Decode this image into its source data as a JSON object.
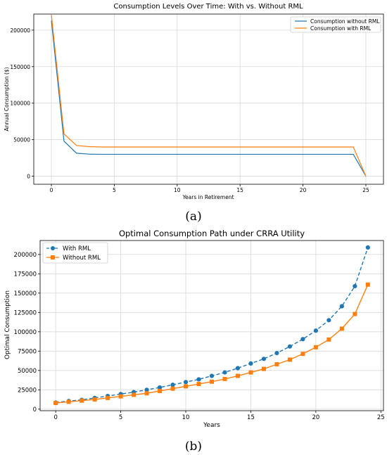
{
  "chart_data": [
    {
      "type": "line",
      "title": "Consumption Levels Over Time: With vs. Without RML",
      "xlabel": "Years in Retirement",
      "ylabel": "Annual Consumption ($)",
      "xlim": [
        -1.4,
        26.4
      ],
      "ylim": [
        -11000,
        222000
      ],
      "xticks": [
        0,
        5,
        10,
        15,
        20,
        25
      ],
      "yticks": [
        0,
        50000,
        100000,
        150000,
        200000
      ],
      "grid": true,
      "legend_position": "top-right",
      "caption": "(a)",
      "x": [
        0,
        1,
        2,
        3,
        4,
        5,
        6,
        7,
        8,
        9,
        10,
        11,
        12,
        13,
        14,
        15,
        16,
        17,
        18,
        19,
        20,
        21,
        22,
        23,
        24,
        25
      ],
      "series": [
        {
          "name": "Consumption without RML",
          "color": "#1f77b4",
          "values": [
            213000,
            48000,
            31500,
            30200,
            30000,
            30000,
            30000,
            30000,
            30000,
            30000,
            30000,
            30000,
            30000,
            30000,
            30000,
            30000,
            30000,
            30000,
            30000,
            30000,
            30000,
            30000,
            30000,
            30000,
            30000,
            0
          ]
        },
        {
          "name": "Consumption with RML",
          "color": "#ff7f0e",
          "values": [
            221000,
            58000,
            42000,
            40500,
            40000,
            40000,
            40000,
            40000,
            40000,
            40000,
            40000,
            40000,
            40000,
            40000,
            40000,
            40000,
            40000,
            40000,
            40000,
            40000,
            40000,
            40000,
            40000,
            40000,
            40000,
            0
          ]
        }
      ]
    },
    {
      "type": "line",
      "title": "Optimal Consumption Path under CRRA Utility",
      "xlabel": "Years",
      "ylabel": "Optimal Consumption",
      "xlim": [
        -1.2,
        25.2
      ],
      "ylim": [
        -2000,
        218000
      ],
      "xticks": [
        0,
        5,
        10,
        15,
        20,
        25
      ],
      "yticks": [
        0,
        25000,
        50000,
        75000,
        100000,
        125000,
        150000,
        175000,
        200000
      ],
      "grid": true,
      "legend_position": "top-left",
      "caption": "(b)",
      "x": [
        0,
        1,
        2,
        3,
        4,
        5,
        6,
        7,
        8,
        9,
        10,
        11,
        12,
        13,
        14,
        15,
        16,
        17,
        18,
        19,
        20,
        21,
        22,
        23,
        24
      ],
      "series": [
        {
          "name": "With RML",
          "color": "#1f77b4",
          "marker": "circle",
          "linestyle": "dashed",
          "values": [
            8500,
            10500,
            12000,
            14500,
            17000,
            19500,
            22000,
            25000,
            28000,
            31500,
            35000,
            38500,
            43000,
            47500,
            53000,
            59000,
            65000,
            72500,
            81000,
            90500,
            101500,
            115000,
            133000,
            159000,
            209000
          ]
        },
        {
          "name": "Without RML",
          "color": "#ff7f0e",
          "marker": "square",
          "linestyle": "solid",
          "values": [
            8000,
            9500,
            11000,
            12500,
            14500,
            16500,
            18500,
            20500,
            23500,
            26500,
            29500,
            32500,
            35500,
            39000,
            43000,
            47500,
            52000,
            58000,
            64000,
            71500,
            80000,
            90000,
            104000,
            123000,
            161000
          ]
        }
      ]
    }
  ]
}
